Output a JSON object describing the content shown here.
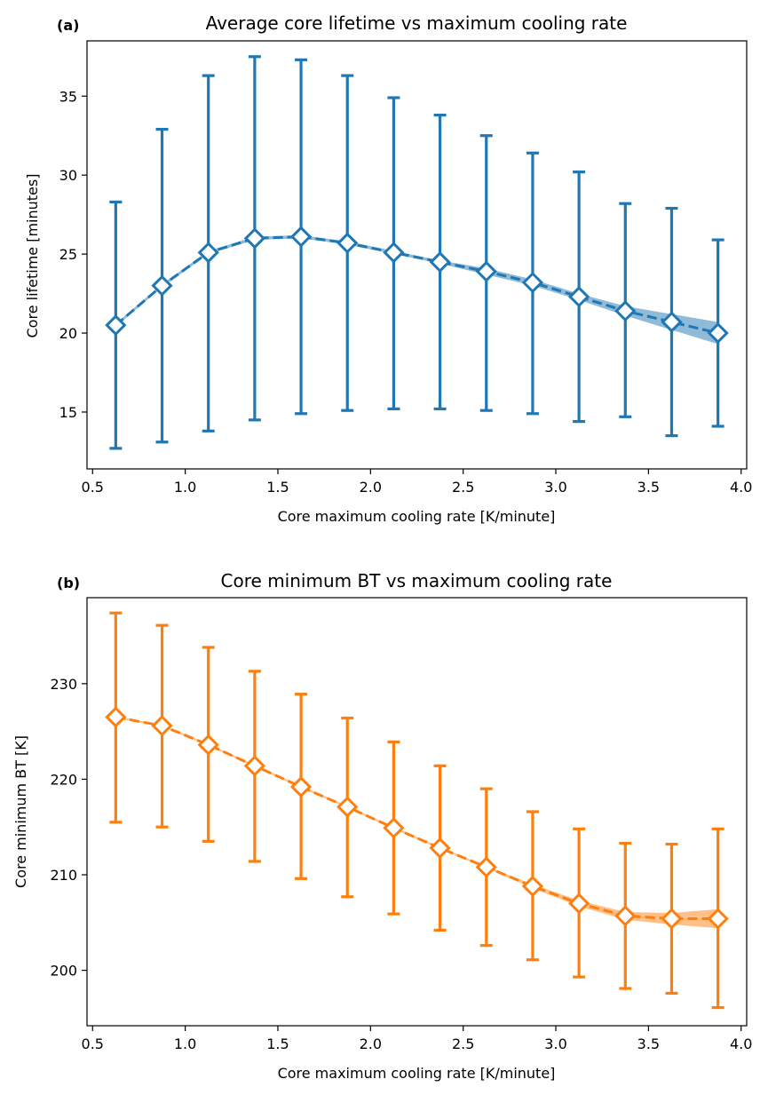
{
  "chart_data": [
    {
      "type": "line",
      "panel_label": "(a)",
      "title": "Average core lifetime vs maximum cooling rate",
      "xlabel": "Core maximum cooling rate [K/minute]",
      "ylabel": "Core lifetime [minutes]",
      "xlim": [
        0.47,
        4.03
      ],
      "ylim": [
        11.4,
        38.5
      ],
      "xticks": [
        "0.5",
        "1.0",
        "1.5",
        "2.0",
        "2.5",
        "3.0",
        "3.5",
        "4.0"
      ],
      "yticks": [
        "15",
        "20",
        "25",
        "30",
        "35"
      ],
      "grid": false,
      "color": "#1f77b4",
      "x": [
        0.625,
        0.875,
        1.125,
        1.375,
        1.625,
        1.875,
        2.125,
        2.375,
        2.625,
        2.875,
        3.125,
        3.375,
        3.625,
        3.875
      ],
      "y": [
        20.5,
        23.0,
        25.1,
        26.0,
        26.1,
        25.7,
        25.1,
        24.5,
        23.9,
        23.2,
        22.3,
        21.4,
        20.7,
        20.0
      ],
      "err_low": [
        12.7,
        13.1,
        13.8,
        14.5,
        14.9,
        15.1,
        15.2,
        15.2,
        15.1,
        14.9,
        14.4,
        14.7,
        13.5,
        14.1
      ],
      "err_high": [
        28.3,
        32.9,
        36.3,
        37.5,
        37.3,
        36.3,
        34.9,
        33.8,
        32.5,
        31.4,
        30.2,
        28.2,
        27.9,
        25.9
      ],
      "band_low": [
        20.4,
        22.9,
        25.0,
        25.9,
        26.0,
        25.6,
        25.0,
        24.4,
        23.7,
        23.0,
        22.1,
        21.1,
        20.2,
        19.3
      ],
      "band_high": [
        20.6,
        23.1,
        25.2,
        26.1,
        26.2,
        25.8,
        25.2,
        24.6,
        24.1,
        23.4,
        22.5,
        21.7,
        21.2,
        20.7
      ]
    },
    {
      "type": "line",
      "panel_label": "(b)",
      "title": "Core minimum BT vs maximum cooling rate",
      "xlabel": "Core maximum cooling rate [K/minute]",
      "ylabel": "Core minimum BT [K]",
      "xlim": [
        0.47,
        4.03
      ],
      "ylim": [
        194.2,
        239.0
      ],
      "xticks": [
        "0.5",
        "1.0",
        "1.5",
        "2.0",
        "2.5",
        "3.0",
        "3.5",
        "4.0"
      ],
      "yticks": [
        "200",
        "210",
        "220",
        "230"
      ],
      "grid": false,
      "color": "#ff7f0e",
      "x": [
        0.625,
        0.875,
        1.125,
        1.375,
        1.625,
        1.875,
        2.125,
        2.375,
        2.625,
        2.875,
        3.125,
        3.375,
        3.625,
        3.875
      ],
      "y": [
        226.5,
        225.6,
        223.6,
        221.4,
        219.2,
        217.1,
        214.9,
        212.8,
        210.8,
        208.8,
        207.0,
        205.7,
        205.4,
        205.4
      ],
      "err_low": [
        215.5,
        215.0,
        213.5,
        211.4,
        209.6,
        207.7,
        205.9,
        204.2,
        202.6,
        201.1,
        199.3,
        198.1,
        197.6,
        196.1
      ],
      "err_high": [
        237.4,
        236.1,
        233.8,
        231.3,
        228.9,
        226.4,
        223.9,
        221.4,
        219.0,
        216.6,
        214.8,
        213.3,
        213.2,
        214.8
      ],
      "band_low": [
        226.4,
        225.5,
        223.5,
        221.3,
        219.1,
        217.0,
        214.8,
        212.7,
        210.7,
        208.6,
        206.7,
        205.3,
        204.8,
        204.4
      ],
      "band_high": [
        226.6,
        225.7,
        223.7,
        221.5,
        219.3,
        217.2,
        215.0,
        212.9,
        210.9,
        209.0,
        207.3,
        206.1,
        206.0,
        206.4
      ]
    }
  ]
}
